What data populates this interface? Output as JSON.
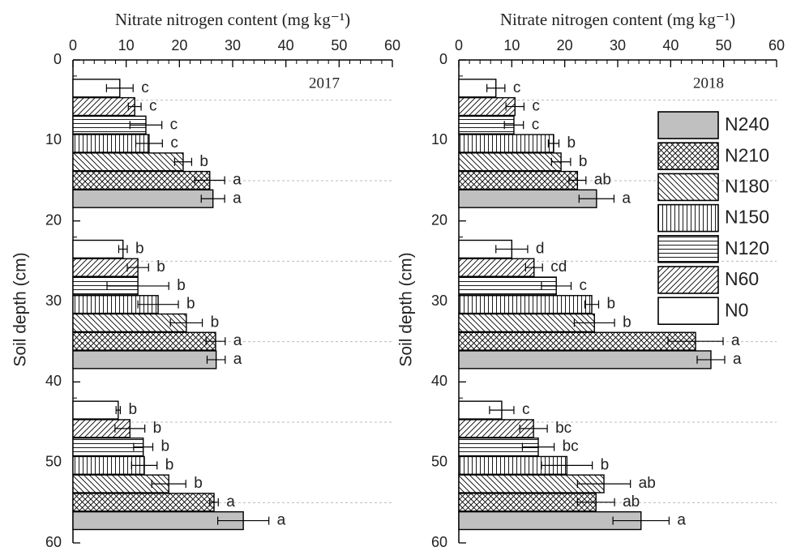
{
  "chart_data": [
    {
      "type": "bar",
      "orientation": "horizontal",
      "xlabel": "Nitrate nitrogen content (mg kg⁻¹)",
      "ylabel": "Soil depth (cm)",
      "panel_label": "2017",
      "xlim": [
        0,
        60
      ],
      "xticks": [
        0,
        10,
        20,
        30,
        40,
        50,
        60
      ],
      "ylim": [
        0,
        60
      ],
      "yticks": [
        0,
        10,
        20,
        30,
        40,
        50,
        60
      ],
      "ygrid_minor": [
        5,
        15,
        25,
        35,
        45,
        55
      ],
      "categories": [
        null,
        null,
        null
      ],
      "series": [
        {
          "color": "#c0c0c0",
          "pattern": "solid",
          "values": [
            26.3,
            26.9,
            32
          ],
          "errors": [
            2.2,
            1.7,
            4.8
          ],
          "letters": [
            "a",
            "a",
            "a"
          ]
        },
        {
          "color": "#000000",
          "pattern": "crosshatch",
          "values": [
            25.7,
            26.8,
            26.5
          ],
          "errors": [
            2.8,
            1.8,
            0.8
          ],
          "letters": [
            "a",
            "a",
            "a"
          ]
        },
        {
          "color": "#000000",
          "pattern": "backslash",
          "values": [
            20.7,
            21.3,
            18
          ],
          "errors": [
            1.6,
            3,
            3.2
          ],
          "letters": [
            "b",
            "b",
            "b"
          ]
        },
        {
          "color": "#000000",
          "pattern": "vertical",
          "values": [
            14.3,
            16,
            13.4
          ],
          "errors": [
            2.5,
            3.8,
            2.4
          ],
          "letters": [
            "c",
            "b",
            "b"
          ]
        },
        {
          "color": "#000000",
          "pattern": "horizontal",
          "values": [
            13.7,
            12.2,
            13.2
          ],
          "errors": [
            3,
            5.8,
            1.8
          ],
          "letters": [
            "c",
            "b",
            "b"
          ]
        },
        {
          "color": "#000000",
          "pattern": "slash",
          "values": [
            11.6,
            12.2,
            10.7
          ],
          "errors": [
            1.2,
            2,
            2.8
          ],
          "letters": [
            "c",
            "b",
            "b"
          ]
        },
        {
          "color": "#ffffff",
          "pattern": "none",
          "values": [
            8.8,
            9.4,
            8.5
          ],
          "errors": [
            2.5,
            0.8,
            0.4
          ],
          "letters": [
            "c",
            "b",
            "b"
          ]
        }
      ]
    },
    {
      "type": "bar",
      "orientation": "horizontal",
      "xlabel": "Nitrate nitrogen content (mg kg⁻¹)",
      "ylabel": "Soil depth (cm)",
      "panel_label": "2018",
      "legend": "upper right",
      "xlim": [
        0,
        60
      ],
      "xticks": [
        0,
        10,
        20,
        30,
        40,
        50,
        60
      ],
      "ylim": [
        0,
        60
      ],
      "yticks": [
        0,
        10,
        20,
        30,
        40,
        50,
        60
      ],
      "ygrid_minor": [
        5,
        15,
        25,
        35,
        45,
        55
      ],
      "categories": [
        null,
        null,
        null
      ],
      "series": [
        {
          "name": "N240",
          "color": "#c0c0c0",
          "pattern": "solid",
          "values": [
            26,
            47.6,
            34.4
          ],
          "errors": [
            3.3,
            2.6,
            5.3
          ],
          "letters": [
            "a",
            "a",
            "a"
          ]
        },
        {
          "name": "N210",
          "color": "#000000",
          "pattern": "crosshatch",
          "values": [
            22.4,
            44.7,
            25.9
          ],
          "errors": [
            1.6,
            5.2,
            3.5
          ],
          "letters": [
            "ab",
            "a",
            "ab"
          ]
        },
        {
          "name": "N180",
          "color": "#000000",
          "pattern": "backslash",
          "values": [
            19.3,
            25.6,
            27.4
          ],
          "errors": [
            1.8,
            3.8,
            5
          ],
          "letters": [
            "b",
            "b",
            "ab"
          ]
        },
        {
          "name": "N150",
          "color": "#000000",
          "pattern": "vertical",
          "values": [
            17.9,
            25.1,
            20.4
          ],
          "errors": [
            1,
            1.3,
            4.8
          ],
          "letters": [
            "b",
            "b",
            "b"
          ]
        },
        {
          "name": "N120",
          "color": "#000000",
          "pattern": "horizontal",
          "values": [
            10.4,
            18.4,
            15
          ],
          "errors": [
            1.8,
            2.8,
            3
          ],
          "letters": [
            "c",
            "c",
            "bc"
          ]
        },
        {
          "name": "N60",
          "color": "#000000",
          "pattern": "slash",
          "values": [
            10.6,
            14.2,
            14.1
          ],
          "errors": [
            1.7,
            1.6,
            2.6
          ],
          "letters": [
            "c",
            "cd",
            "bc"
          ]
        },
        {
          "name": "N0",
          "color": "#ffffff",
          "pattern": "none",
          "values": [
            7,
            10,
            8.1
          ],
          "errors": [
            1.7,
            3,
            2.3
          ],
          "letters": [
            "c",
            "d",
            "c"
          ]
        }
      ]
    }
  ]
}
